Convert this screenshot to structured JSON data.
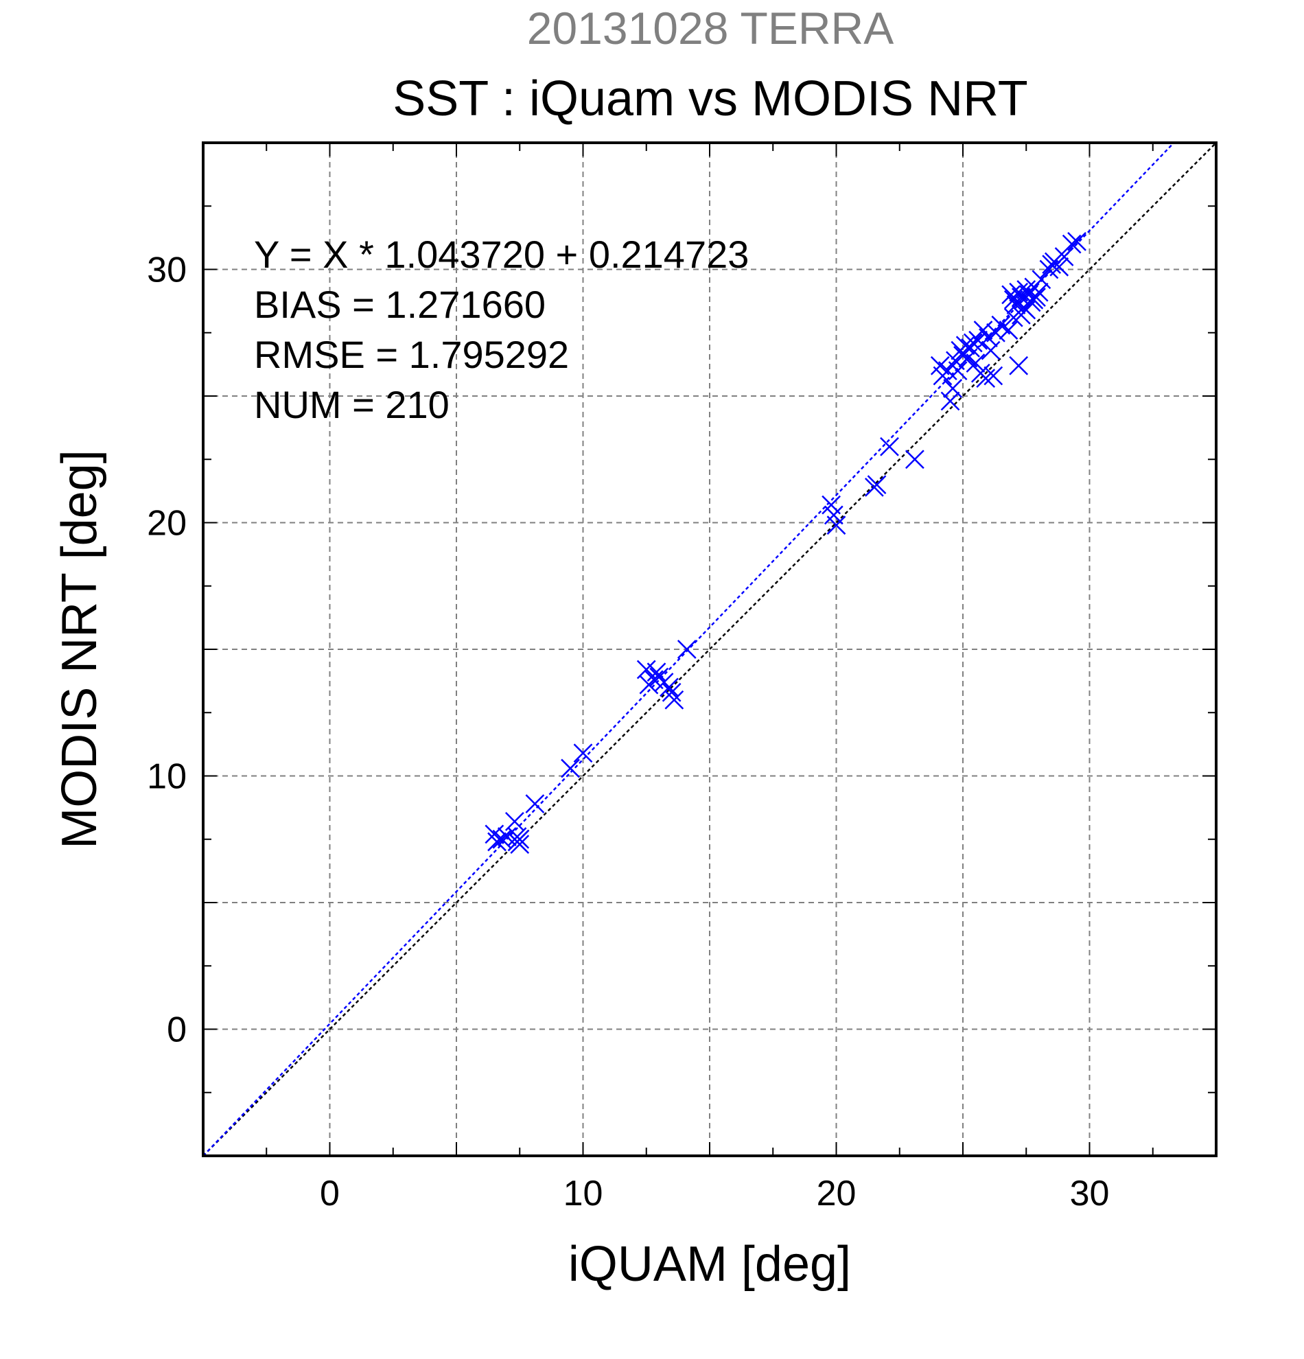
{
  "chart_data": {
    "type": "scatter",
    "supertitle": "20131028 TERRA",
    "title": "SST : iQuam vs MODIS NRT",
    "xlabel": "iQUAM [deg]",
    "ylabel": "MODIS NRT [deg]",
    "xlim": [
      -5,
      35
    ],
    "ylim": [
      -5,
      35
    ],
    "xticks": [
      0,
      10,
      20,
      30
    ],
    "yticks": [
      0,
      10,
      20,
      30
    ],
    "grid": true,
    "colors": {
      "points": "#0000ff",
      "fit_line": "#0000ff",
      "identity_line": "#000000",
      "supertitle": "#808080",
      "grid": "#808080"
    },
    "stats": [
      "Y = X * 1.043720 + 0.214723",
      "BIAS = 1.271660",
      "RMSE = 1.795292",
      "NUM = 210"
    ],
    "fit": {
      "slope": 1.04372,
      "intercept": 0.214723
    },
    "series": [
      {
        "marker": "x",
        "x": [
          6.5,
          6.6,
          6.8,
          7.0,
          7.3,
          7.4,
          7.5,
          7.5,
          7.4,
          8.1,
          9.5,
          10.0,
          12.5,
          12.6,
          12.8,
          12.9,
          13.0,
          13.2,
          13.4,
          13.5,
          13.6,
          14.1,
          19.8,
          19.9,
          20.0,
          21.5,
          21.6,
          22.1,
          23.1,
          24.1,
          24.2,
          24.4,
          24.5,
          24.6,
          24.7,
          24.8,
          24.9,
          25.0,
          25.1,
          25.2,
          25.3,
          25.4,
          25.5,
          25.6,
          25.7,
          25.8,
          25.9,
          26.0,
          26.1,
          26.2,
          26.3,
          26.5,
          26.8,
          27.0,
          27.2,
          26.9,
          27.0,
          27.1,
          27.2,
          27.3,
          27.4,
          27.5,
          27.6,
          27.7,
          27.8,
          27.9,
          28.0,
          27.3,
          27.5,
          27.8,
          28.1,
          28.4,
          28.5,
          28.6,
          28.8,
          29.0,
          29.3,
          29.5
        ],
        "y": [
          7.7,
          7.4,
          7.5,
          7.6,
          8.2,
          7.4,
          7.3,
          7.5,
          7.6,
          8.9,
          10.3,
          10.9,
          14.2,
          13.6,
          13.8,
          14.1,
          13.9,
          13.7,
          13.5,
          13.3,
          13.0,
          15.0,
          20.7,
          20.3,
          19.9,
          21.4,
          21.5,
          23.0,
          22.5,
          26.2,
          25.8,
          26.0,
          24.8,
          25.3,
          26.4,
          26.0,
          26.8,
          26.6,
          27.0,
          26.5,
          26.9,
          27.1,
          26.3,
          27.2,
          25.9,
          27.6,
          25.7,
          27.3,
          26.8,
          25.8,
          27.5,
          27.8,
          27.6,
          28.1,
          26.2,
          29.0,
          28.8,
          28.6,
          29.1,
          28.9,
          28.5,
          29.2,
          29.0,
          28.7,
          29.3,
          28.9,
          29.1,
          28.2,
          28.4,
          28.8,
          29.6,
          30.0,
          30.2,
          30.3,
          30.1,
          30.5,
          31.0,
          31.1
        ]
      }
    ]
  }
}
